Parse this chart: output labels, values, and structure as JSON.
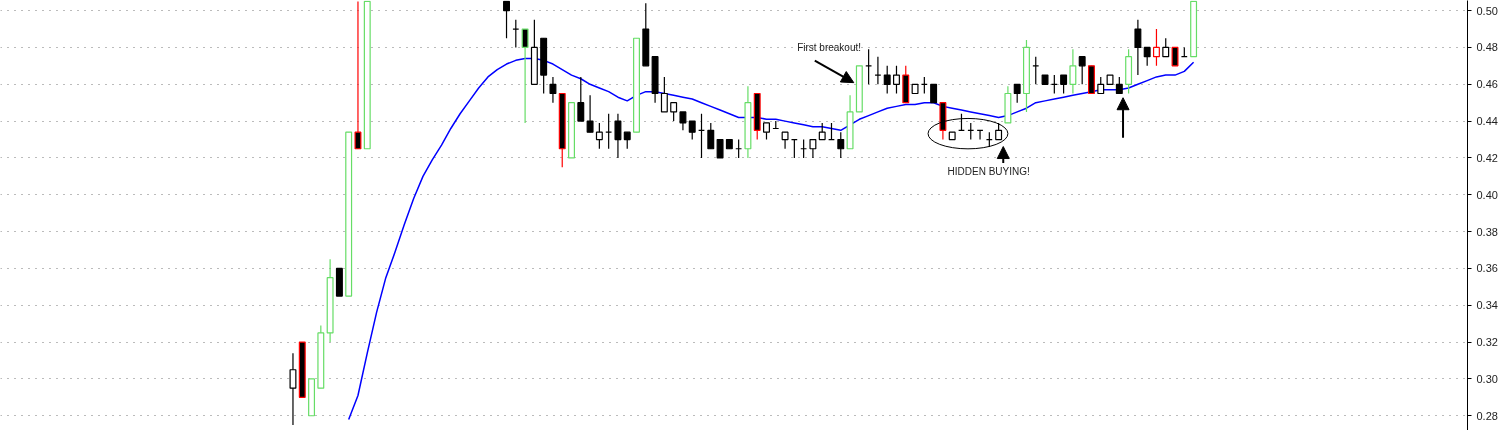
{
  "chart_data": {
    "type": "candlestick",
    "categories": [
      null,
      null,
      null,
      null,
      null,
      null,
      null,
      null,
      null,
      null,
      null,
      null,
      null,
      null,
      null,
      null,
      null,
      null,
      null,
      null,
      null,
      null,
      null,
      null,
      null,
      null,
      null,
      null,
      null,
      null,
      null,
      null,
      null,
      null,
      null,
      null,
      null,
      null,
      null,
      null,
      null,
      null,
      null,
      null,
      null,
      null,
      null,
      null,
      null,
      null,
      null,
      null,
      null,
      null,
      null,
      null,
      null,
      null,
      null,
      null,
      null,
      null,
      null,
      null,
      null,
      null,
      null,
      null,
      null,
      null,
      null,
      null,
      null,
      null,
      null,
      null,
      null,
      null,
      null,
      null,
      null,
      null,
      null,
      null,
      null,
      null,
      null,
      null,
      null,
      null,
      null,
      null,
      null,
      null,
      null,
      null,
      null,
      null,
      null,
      null,
      null,
      null,
      null,
      null,
      null,
      null,
      null,
      null,
      null,
      null,
      null,
      null,
      null,
      null,
      null,
      null,
      null,
      null,
      null,
      null,
      null,
      null,
      null,
      null,
      null,
      null,
      null,
      null,
      null,
      null,
      null,
      null,
      null,
      null,
      null,
      null,
      null,
      null,
      null,
      null,
      null,
      null,
      null,
      null,
      null,
      null,
      null,
      null,
      null,
      null,
      null,
      null,
      null,
      null,
      null,
      null,
      null,
      null
    ],
    "ohlc": [
      null,
      null,
      null,
      null,
      null,
      null,
      null,
      null,
      null,
      null,
      null,
      null,
      null,
      null,
      null,
      null,
      null,
      null,
      null,
      null,
      null,
      null,
      null,
      null,
      null,
      null,
      null,
      null,
      null,
      null,
      null,
      [
        0.295,
        0.314,
        0.275,
        0.305
      ],
      [
        0.32,
        0.32,
        0.29,
        0.29
      ],
      [
        0.28,
        0.3,
        0.28,
        0.3
      ],
      [
        0.295,
        0.329,
        0.295,
        0.325
      ],
      [
        0.325,
        0.365,
        0.32,
        0.355
      ],
      [
        0.36,
        0.36,
        0.345,
        0.345
      ],
      [
        0.345,
        0.434,
        0.345,
        0.434
      ],
      [
        0.434,
        0.505,
        0.425,
        0.425
      ],
      [
        0.425,
        0.505,
        0.425,
        0.505
      ],
      null,
      null,
      null,
      null,
      null,
      null,
      null,
      null,
      null,
      null,
      null,
      null,
      null,
      null,
      [
        0.505,
        0.505,
        0.485,
        0.5
      ],
      [
        0.49,
        0.495,
        0.48,
        0.49
      ],
      [
        0.49,
        0.49,
        0.439,
        0.48
      ],
      [
        0.46,
        0.495,
        0.46,
        0.48
      ],
      [
        0.485,
        0.485,
        0.455,
        0.465
      ],
      [
        0.46,
        0.464,
        0.45,
        0.455
      ],
      [
        0.455,
        0.455,
        0.415,
        0.425
      ],
      [
        0.42,
        0.45,
        0.42,
        0.45
      ],
      [
        0.45,
        0.464,
        0.44,
        0.44
      ],
      [
        0.44,
        0.454,
        0.434,
        0.434
      ],
      [
        0.43,
        0.439,
        0.425,
        0.434
      ],
      [
        0.434,
        0.444,
        0.425,
        0.434
      ],
      [
        0.44,
        0.444,
        0.42,
        0.43
      ],
      [
        0.434,
        0.434,
        0.425,
        0.43
      ],
      [
        0.434,
        0.485,
        0.434,
        0.485
      ],
      [
        0.49,
        0.504,
        0.47,
        0.47
      ],
      [
        0.475,
        0.475,
        0.45,
        0.455
      ],
      [
        0.445,
        0.464,
        0.445,
        0.455
      ],
      [
        0.445,
        0.45,
        0.44,
        0.45
      ],
      [
        0.445,
        0.445,
        0.435,
        0.439
      ],
      [
        0.44,
        0.44,
        0.43,
        0.434
      ],
      [
        0.435,
        0.444,
        0.42,
        0.435
      ],
      [
        0.435,
        0.439,
        0.425,
        0.425
      ],
      [
        0.43,
        0.43,
        0.42,
        0.42
      ],
      [
        0.43,
        0.43,
        0.425,
        0.425
      ],
      [
        0.425,
        0.43,
        0.42,
        0.425
      ],
      [
        0.425,
        0.459,
        0.42,
        0.45
      ],
      [
        0.455,
        0.455,
        0.43,
        0.435
      ],
      [
        0.434,
        0.439,
        0.43,
        0.439
      ],
      [
        0.436,
        0.44,
        0.436,
        0.436
      ],
      [
        0.43,
        0.434,
        0.425,
        0.434
      ],
      [
        0.43,
        0.43,
        0.42,
        0.43
      ],
      [
        0.425,
        0.43,
        0.42,
        0.425
      ],
      [
        0.425,
        0.43,
        0.42,
        0.43
      ],
      [
        0.43,
        0.439,
        0.43,
        0.434
      ],
      [
        0.43,
        0.439,
        0.43,
        0.43
      ],
      [
        0.43,
        0.434,
        0.42,
        0.425
      ],
      [
        0.425,
        0.454,
        0.425,
        0.445
      ],
      [
        0.445,
        0.47,
        0.445,
        0.47
      ],
      [
        0.47,
        0.479,
        0.46,
        0.47
      ],
      [
        0.465,
        0.475,
        0.46,
        0.465
      ],
      [
        0.465,
        0.47,
        0.455,
        0.46
      ],
      [
        0.46,
        0.47,
        0.455,
        0.465
      ],
      [
        0.465,
        0.47,
        0.45,
        0.45
      ],
      [
        0.455,
        0.46,
        0.455,
        0.46
      ],
      [
        0.46,
        0.464,
        0.455,
        0.46
      ],
      [
        0.46,
        0.46,
        0.45,
        0.45
      ],
      [
        0.45,
        0.45,
        0.43,
        0.435
      ],
      [
        0.43,
        0.434,
        0.43,
        0.434
      ],
      [
        0.435,
        0.444,
        0.435,
        0.435
      ],
      [
        0.435,
        0.439,
        0.43,
        0.435
      ],
      [
        0.435,
        0.435,
        0.43,
        0.435
      ],
      [
        0.43,
        0.434,
        0.426,
        0.43
      ],
      [
        0.43,
        0.439,
        0.43,
        0.435
      ],
      [
        0.439,
        0.459,
        0.439,
        0.455
      ],
      [
        0.46,
        0.46,
        0.45,
        0.455
      ],
      [
        0.455,
        0.484,
        0.445,
        0.48
      ],
      [
        0.47,
        0.475,
        0.46,
        0.47
      ],
      [
        0.465,
        0.465,
        0.46,
        0.46
      ],
      [
        0.46,
        0.465,
        0.455,
        0.46
      ],
      [
        0.465,
        0.465,
        0.455,
        0.46
      ],
      [
        0.46,
        0.479,
        0.455,
        0.47
      ],
      [
        0.475,
        0.475,
        0.46,
        0.47
      ],
      [
        0.47,
        0.47,
        0.455,
        0.455
      ],
      [
        0.455,
        0.464,
        0.455,
        0.46
      ],
      [
        0.46,
        0.465,
        0.46,
        0.465
      ],
      [
        0.46,
        0.464,
        0.455,
        0.455
      ],
      [
        0.46,
        0.479,
        0.455,
        0.475
      ],
      [
        0.49,
        0.495,
        0.465,
        0.48
      ],
      [
        0.48,
        0.48,
        0.47,
        0.475
      ],
      [
        0.475,
        0.49,
        0.47,
        0.48
      ],
      [
        0.475,
        0.485,
        0.475,
        0.48
      ],
      [
        0.48,
        0.48,
        0.47,
        0.47
      ],
      [
        0.475,
        0.48,
        0.475,
        0.475
      ],
      [
        0.475,
        0.505,
        0.475,
        0.505
      ],
      null,
      null,
      null,
      null,
      null,
      null,
      null,
      null,
      null,
      null,
      null,
      null,
      null,
      null,
      null,
      null,
      null,
      null,
      null,
      null,
      null,
      null,
      null,
      null,
      null,
      null,
      null,
      null,
      null
    ],
    "colors": [
      null,
      null,
      null,
      null,
      null,
      null,
      null,
      null,
      null,
      null,
      null,
      null,
      null,
      null,
      null,
      null,
      null,
      null,
      null,
      null,
      null,
      null,
      null,
      null,
      null,
      null,
      null,
      null,
      null,
      null,
      null,
      "#000000",
      "#ff0000",
      "#66dd66",
      "#66dd66",
      "#66dd66",
      "#000000",
      "#66dd66",
      "#ff0000",
      "#66dd66",
      null,
      null,
      null,
      null,
      null,
      null,
      null,
      null,
      null,
      null,
      null,
      null,
      null,
      null,
      "#000000",
      "#000000",
      "#66dd66",
      "#000000",
      "#000000",
      "#000000",
      "#ff0000",
      "#66dd66",
      "#000000",
      "#000000",
      "#000000",
      "#000000",
      "#000000",
      "#000000",
      "#66dd66",
      "#000000",
      "#000000",
      "#000000",
      "#000000",
      "#000000",
      "#000000",
      "#000000",
      "#000000",
      "#000000",
      "#000000",
      "#000000",
      "#66dd66",
      "#ff0000",
      "#000000",
      "#000000",
      "#000000",
      "#000000",
      "#000000",
      "#000000",
      "#000000",
      "#000000",
      "#000000",
      "#66dd66",
      "#66dd66",
      "#000000",
      "#000000",
      "#000000",
      "#000000",
      "#ff0000",
      "#000000",
      "#000000",
      "#000000",
      "#ff0000",
      "#000000",
      "#000000",
      "#000000",
      "#000000",
      "#000000",
      "#000000",
      "#66dd66",
      "#000000",
      "#66dd66",
      "#000000",
      "#000000",
      "#000000",
      "#000000",
      "#66dd66",
      "#000000",
      "#ff0000",
      "#000000",
      "#000000",
      "#000000",
      "#66dd66",
      "#000000",
      "#000000",
      "#ff0000",
      "#000000",
      "#ff0000",
      "#000000",
      "#66dd66",
      null,
      null,
      null,
      null,
      null,
      null,
      null,
      null,
      null,
      null,
      null,
      null,
      null,
      null,
      null,
      null,
      null,
      null,
      null,
      null,
      null,
      null,
      null,
      null,
      null,
      null,
      null,
      null,
      null
    ],
    "series": [
      {
        "type": "line",
        "color": "#0000ff",
        "values": [
          null,
          null,
          null,
          null,
          null,
          null,
          null,
          null,
          null,
          null,
          null,
          null,
          null,
          null,
          null,
          null,
          null,
          null,
          null,
          null,
          null,
          null,
          null,
          null,
          null,
          null,
          null,
          null,
          null,
          null,
          null,
          null,
          null,
          null,
          null,
          null,
          null,
          0.278,
          0.291,
          0.314,
          0.336,
          0.355,
          0.369,
          0.384,
          0.398,
          0.41,
          0.419,
          0.427,
          0.436,
          0.444,
          0.451,
          0.458,
          0.464,
          0.468,
          0.471,
          0.473,
          0.474,
          0.474,
          0.473,
          0.471,
          0.468,
          0.465,
          0.463,
          0.46,
          0.458,
          0.456,
          0.453,
          0.451,
          0.454,
          0.456,
          0.456,
          0.455,
          0.454,
          0.453,
          0.452,
          0.45,
          0.448,
          0.446,
          0.444,
          0.442,
          0.442,
          0.442,
          0.441,
          0.441,
          0.44,
          0.439,
          0.438,
          0.437,
          0.437,
          0.436,
          0.435,
          0.438,
          0.441,
          0.443,
          0.445,
          0.447,
          0.448,
          0.449,
          0.449,
          0.45,
          0.45,
          0.448,
          0.447,
          0.446,
          0.445,
          0.444,
          0.443,
          0.442,
          0.443,
          0.445,
          0.447,
          0.45,
          0.451,
          0.452,
          0.453,
          0.454,
          0.455,
          0.456,
          0.457,
          0.457,
          0.457,
          0.458,
          0.46,
          0.462,
          0.464,
          0.465,
          0.465,
          0.467,
          0.472,
          null,
          null,
          null,
          null,
          null,
          null,
          null,
          null,
          null,
          null,
          null,
          null,
          null,
          null,
          null,
          null,
          null,
          null,
          null,
          null,
          null,
          null,
          null,
          null,
          null,
          null,
          null,
          null,
          null
        ]
      }
    ],
    "annotations": [
      "First breakout!",
      "HIDDEN BUYING!"
    ],
    "ylim": [
      0.272,
      0.5055
    ],
    "yticks": [
      0.28,
      {
        "value": 0.3,
        "label": "0.30"
      },
      0.32,
      0.34,
      0.36,
      0.38,
      {
        "value": 0.4,
        "label": "0.40"
      },
      0.42,
      0.44,
      0.46,
      0.48,
      {
        "value": 0.5,
        "label": "0.50"
      }
    ],
    "grid": "y",
    "tick_labels": "y"
  }
}
